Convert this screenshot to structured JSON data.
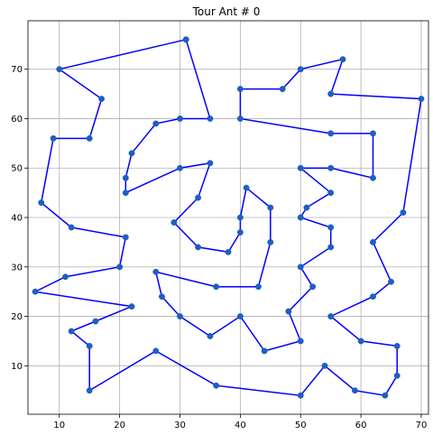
{
  "chart_data": {
    "type": "line",
    "title": "Tour Ant # 0",
    "xlabel": "",
    "ylabel": "",
    "xlim": [
      4.8,
      71.2
    ],
    "ylim": [
      0.2,
      79.8
    ],
    "xticks": [
      10,
      20,
      30,
      40,
      50,
      60,
      70
    ],
    "yticks": [
      10,
      20,
      30,
      40,
      50,
      60,
      70
    ],
    "grid": true,
    "line_color": "#0000ff",
    "marker_color": "#1f5fbf",
    "series": [
      {
        "points": [
          [
            31,
            76
          ],
          [
            35,
            60
          ],
          [
            30,
            60
          ],
          [
            26,
            59
          ],
          [
            22,
            53
          ],
          [
            21,
            48
          ],
          [
            21,
            45
          ],
          [
            30,
            50
          ],
          [
            35,
            51
          ],
          [
            33,
            44
          ],
          [
            29,
            39
          ],
          [
            33,
            34
          ],
          [
            38,
            33
          ],
          [
            40,
            37
          ],
          [
            40,
            40
          ],
          [
            41,
            46
          ],
          [
            45,
            42
          ],
          [
            45,
            35
          ],
          [
            43,
            26
          ],
          [
            36,
            26
          ],
          [
            26,
            29
          ],
          [
            27,
            24
          ],
          [
            30,
            20
          ],
          [
            35,
            16
          ],
          [
            40,
            20
          ],
          [
            44,
            13
          ],
          [
            50,
            15
          ],
          [
            48,
            21
          ],
          [
            52,
            26
          ],
          [
            50,
            30
          ],
          [
            55,
            34
          ],
          [
            55,
            38
          ],
          [
            50,
            40
          ],
          [
            51,
            42
          ],
          [
            55,
            45
          ],
          [
            50,
            50
          ],
          [
            55,
            50
          ],
          [
            62,
            48
          ],
          [
            62,
            57
          ],
          [
            55,
            57
          ],
          [
            40,
            60
          ],
          [
            40,
            66
          ],
          [
            47,
            66
          ],
          [
            50,
            70
          ],
          [
            57,
            72
          ],
          [
            55,
            65
          ],
          [
            70,
            64
          ],
          [
            67,
            41
          ],
          [
            62,
            35
          ],
          [
            65,
            27
          ],
          [
            62,
            24
          ],
          [
            55,
            20
          ],
          [
            60,
            15
          ],
          [
            66,
            14
          ],
          [
            66,
            8
          ],
          [
            64,
            4
          ],
          [
            59,
            5
          ],
          [
            54,
            10
          ],
          [
            50,
            4
          ],
          [
            36,
            6
          ],
          [
            26,
            13
          ],
          [
            15,
            5
          ],
          [
            15,
            14
          ],
          [
            12,
            17
          ],
          [
            16,
            19
          ],
          [
            22,
            22
          ],
          [
            6,
            25
          ],
          [
            11,
            28
          ],
          [
            20,
            30
          ],
          [
            21,
            36
          ],
          [
            12,
            38
          ],
          [
            7,
            43
          ],
          [
            9,
            56
          ],
          [
            15,
            56
          ],
          [
            17,
            64
          ],
          [
            10,
            70
          ],
          [
            31,
            76
          ]
        ]
      }
    ]
  }
}
